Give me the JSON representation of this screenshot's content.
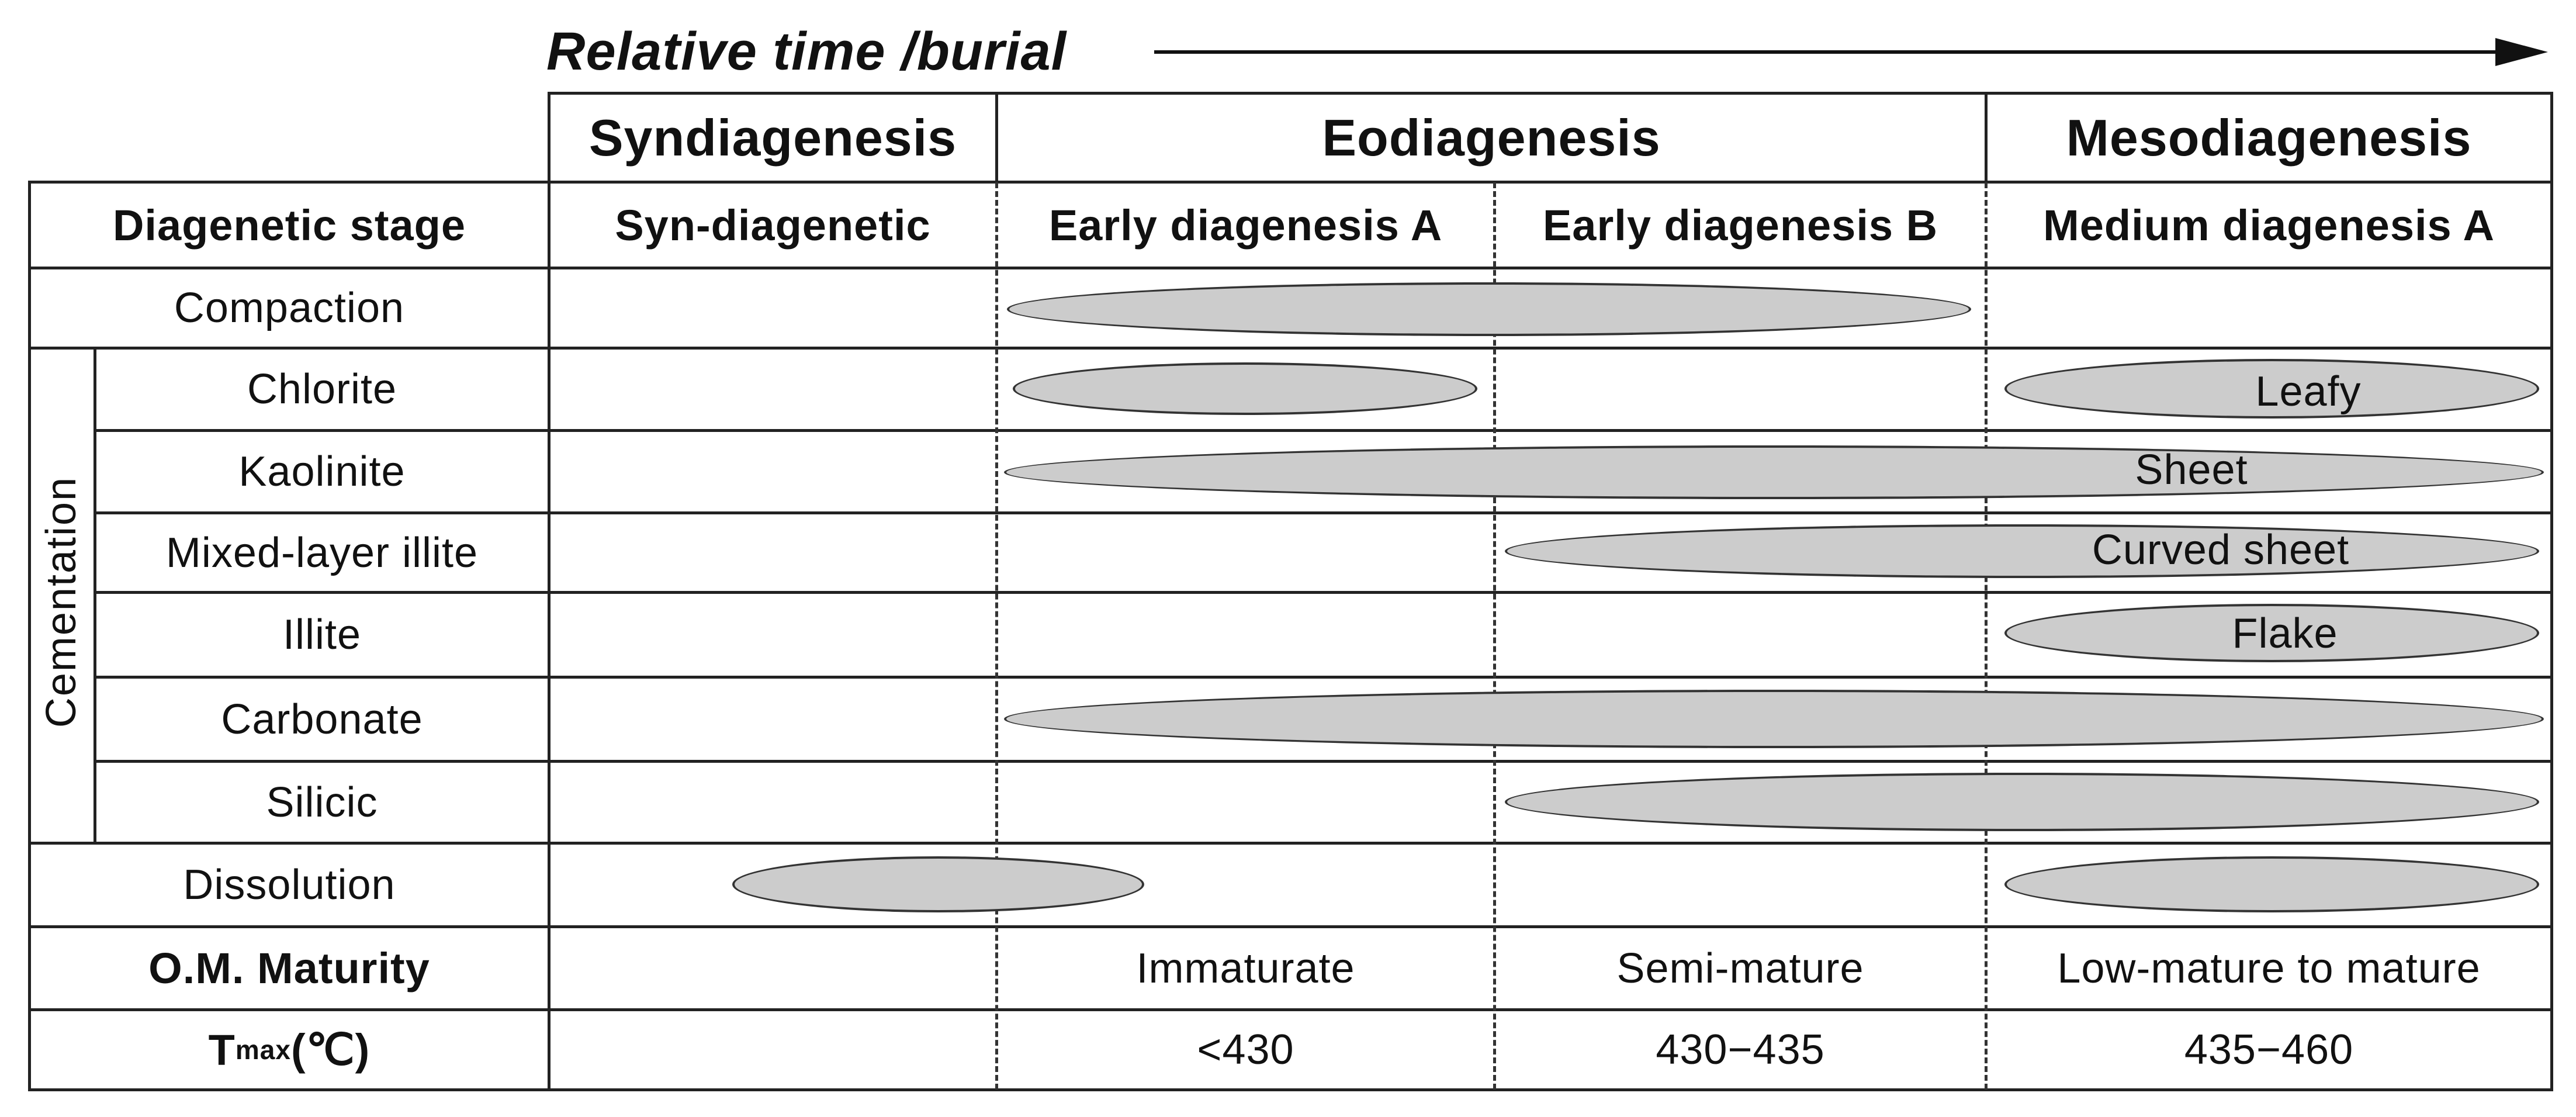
{
  "header": {
    "arrow_label": "Relative time /burial"
  },
  "phases": {
    "syn": "Syndiagenesis",
    "eo": "Eodiagenesis",
    "meso": "Mesodiagenesis"
  },
  "stage_row": {
    "label": "Diagenetic stage",
    "stages": [
      "Syn-diagenetic",
      "Early diagenesis A",
      "Early diagenesis B",
      "Medium diagenesis A"
    ]
  },
  "rows": {
    "compaction": "Compaction",
    "cementation_group": "Cementation",
    "chlorite": "Chlorite",
    "kaolinite": "Kaolinite",
    "mixed_illite": "Mixed-layer illite",
    "illite": "Illite",
    "carbonate": "Carbonate",
    "silicic": "Silicic",
    "dissolution": "Dissolution",
    "maturity": "O.M. Maturity",
    "tmax_main": "T",
    "tmax_sub": "max",
    "tmax_unit": "(℃)"
  },
  "ellipse_labels": {
    "chlorite_leafy": "Leafy",
    "kaolinite_sheet": "Sheet",
    "mixed_curved": "Curved sheet",
    "illite_flake": "Flake"
  },
  "maturity": [
    "",
    "Immaturate",
    "Semi-mature",
    "Low-mature to mature"
  ],
  "tmax": [
    "",
    "<430",
    "430−435",
    "435−460"
  ],
  "colors": {
    "ellipse_fill": "#cccccc",
    "line": "#222222"
  }
}
